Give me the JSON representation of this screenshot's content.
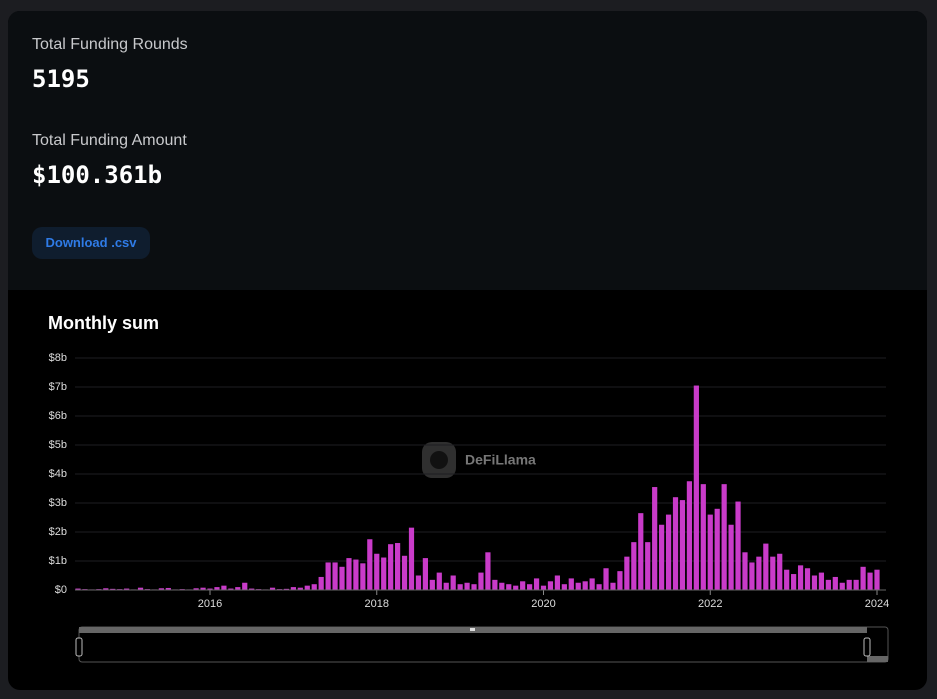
{
  "stats": [
    {
      "label": "Total Funding Rounds",
      "value": "5195"
    },
    {
      "label": "Total Funding Amount",
      "value": "$100.361b"
    }
  ],
  "button": "Download .csv",
  "chart_data": {
    "type": "bar",
    "title": "Monthly sum",
    "watermark": "DeFiLlama",
    "color": "#c93bc9",
    "grid": true,
    "ylim": [
      0,
      8
    ],
    "yticks": [
      {
        "value": 0,
        "label": "$0"
      },
      {
        "value": 1,
        "label": "$1b"
      },
      {
        "value": 2,
        "label": "$2b"
      },
      {
        "value": 3,
        "label": "$3b"
      },
      {
        "value": 4,
        "label": "$4b"
      },
      {
        "value": 5,
        "label": "$5b"
      },
      {
        "value": 6,
        "label": "$6b"
      },
      {
        "value": 7,
        "label": "$7b"
      },
      {
        "value": 8,
        "label": "$8b"
      }
    ],
    "categories": [
      null,
      null,
      null,
      null,
      null,
      null,
      null,
      null,
      null,
      null,
      null,
      null,
      null,
      null,
      null,
      null,
      null,
      null,
      null,
      "2016",
      null,
      null,
      null,
      null,
      null,
      null,
      null,
      null,
      null,
      null,
      null,
      null,
      null,
      null,
      null,
      null,
      null,
      null,
      null,
      null,
      null,
      null,
      null,
      "2018",
      null,
      null,
      null,
      null,
      null,
      null,
      null,
      null,
      null,
      null,
      null,
      null,
      null,
      null,
      null,
      null,
      null,
      null,
      null,
      null,
      null,
      null,
      null,
      "2020",
      null,
      null,
      null,
      null,
      null,
      null,
      null,
      null,
      null,
      null,
      null,
      null,
      null,
      null,
      null,
      null,
      null,
      null,
      null,
      null,
      null,
      null,
      null,
      "2022",
      null,
      null,
      null,
      null,
      null,
      null,
      null,
      null,
      null,
      null,
      null,
      null,
      null,
      null,
      null,
      null,
      null,
      null,
      null,
      null,
      null,
      null,
      null,
      "2024"
    ],
    "values": [
      0.05,
      0.03,
      0.02,
      0.03,
      0.06,
      0.04,
      0.03,
      0.05,
      0.02,
      0.08,
      0.03,
      0.02,
      0.06,
      0.07,
      0.02,
      0.03,
      0.02,
      0.06,
      0.08,
      0.05,
      0.1,
      0.15,
      0.05,
      0.1,
      0.25,
      0.05,
      0.03,
      0.02,
      0.08,
      0.03,
      0.04,
      0.1,
      0.08,
      0.15,
      0.2,
      0.45,
      0.95,
      0.95,
      0.8,
      1.1,
      1.05,
      0.92,
      1.75,
      1.25,
      1.12,
      1.58,
      1.62,
      1.18,
      2.15,
      0.5,
      1.1,
      0.35,
      0.6,
      0.25,
      0.5,
      0.2,
      0.25,
      0.2,
      0.6,
      1.3,
      0.35,
      0.25,
      0.2,
      0.15,
      0.3,
      0.2,
      0.4,
      0.15,
      0.3,
      0.5,
      0.2,
      0.4,
      0.25,
      0.3,
      0.4,
      0.2,
      0.75,
      0.25,
      0.65,
      1.15,
      1.65,
      2.65,
      1.65,
      3.55,
      2.25,
      2.6,
      3.2,
      3.1,
      3.75,
      7.05,
      3.65,
      2.6,
      2.8,
      3.65,
      2.25,
      3.05,
      1.3,
      0.95,
      1.15,
      1.6,
      1.15,
      1.25,
      0.7,
      0.55,
      0.85,
      0.75,
      0.5,
      0.6,
      0.35,
      0.45,
      0.25,
      0.35,
      0.35,
      0.8,
      0.6,
      0.7
    ]
  }
}
